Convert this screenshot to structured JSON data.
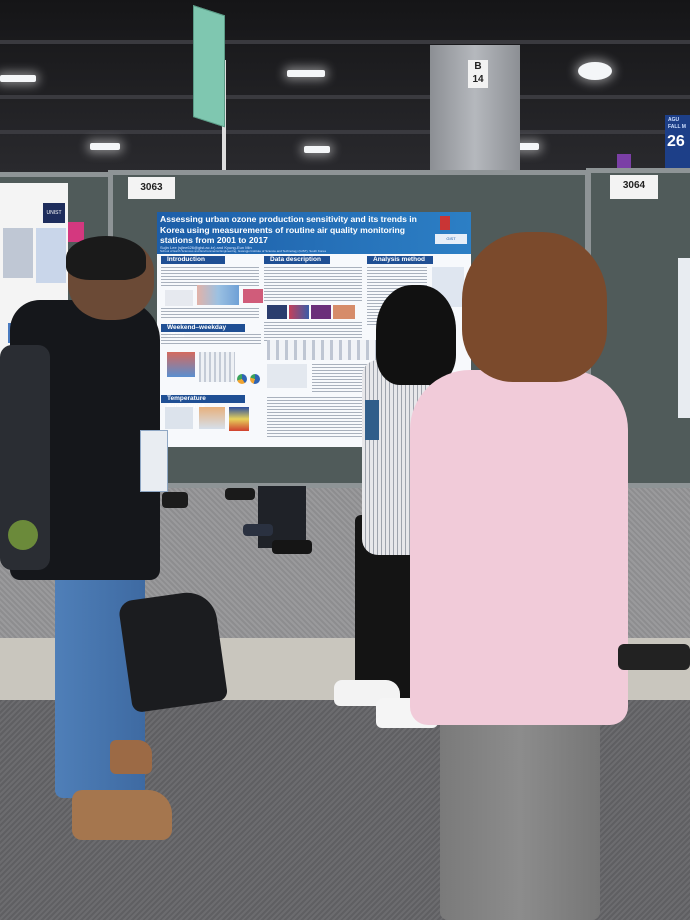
{
  "scene": {
    "description_tag": "poster-session-photo",
    "colors": {
      "poster_header": "#1d5ea8",
      "board": "#505b5a",
      "pink_sweater": "#f1cbd9"
    }
  },
  "booth_signs": {
    "pillar": "B\n14",
    "left_board_number": "3063",
    "right_board_number": "3064",
    "banner_number": "26",
    "banner_small": "AGU FALL M"
  },
  "left_poster": {
    "logo": "UNIST"
  },
  "poster": {
    "title": "Assessing urban ozone production sensitivity and its trends in Korea using measurements of routine air quality monitoring stations from 2001 to 2017",
    "authors": "Sujin Lee (sjlee626@gist.ac.kr) and Kyung-Eun Min",
    "affiliation": "School of Earth Sciences and Environmental Engineering, Gwangju Institute of Science and Technology (GIST), South Korea",
    "logo_text": "GIST",
    "sections": {
      "introduction": "Introduction",
      "data_description": "Data description",
      "analysis_method": "Analysis method",
      "weekend_weekday": "Weekend–weekday effect",
      "temperature": "Temperature dependence"
    }
  }
}
